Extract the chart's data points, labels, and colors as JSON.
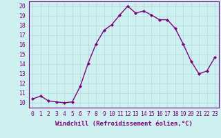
{
  "x": [
    0,
    1,
    2,
    3,
    4,
    5,
    6,
    7,
    8,
    9,
    10,
    11,
    12,
    13,
    14,
    15,
    16,
    17,
    18,
    19,
    20,
    21,
    22,
    23
  ],
  "y": [
    10.4,
    10.7,
    10.2,
    10.1,
    10.0,
    10.1,
    11.7,
    14.1,
    16.1,
    17.5,
    18.1,
    19.1,
    20.0,
    19.3,
    19.5,
    19.1,
    18.6,
    18.6,
    17.7,
    16.1,
    14.3,
    13.0,
    13.3,
    14.7
  ],
  "line_color": "#7b007b",
  "marker": "D",
  "marker_size": 2.0,
  "xlabel": "Windchill (Refroidissement éolien,°C)",
  "xlabel_fontsize": 6.5,
  "ylabel_ticks": [
    10,
    11,
    12,
    13,
    14,
    15,
    16,
    17,
    18,
    19,
    20
  ],
  "xlim": [
    -0.5,
    23.5
  ],
  "ylim": [
    9.5,
    20.5
  ],
  "background_color": "#cff0f0",
  "grid_color": "#b0dada",
  "tick_fontsize": 5.8,
  "line_width": 1.0
}
